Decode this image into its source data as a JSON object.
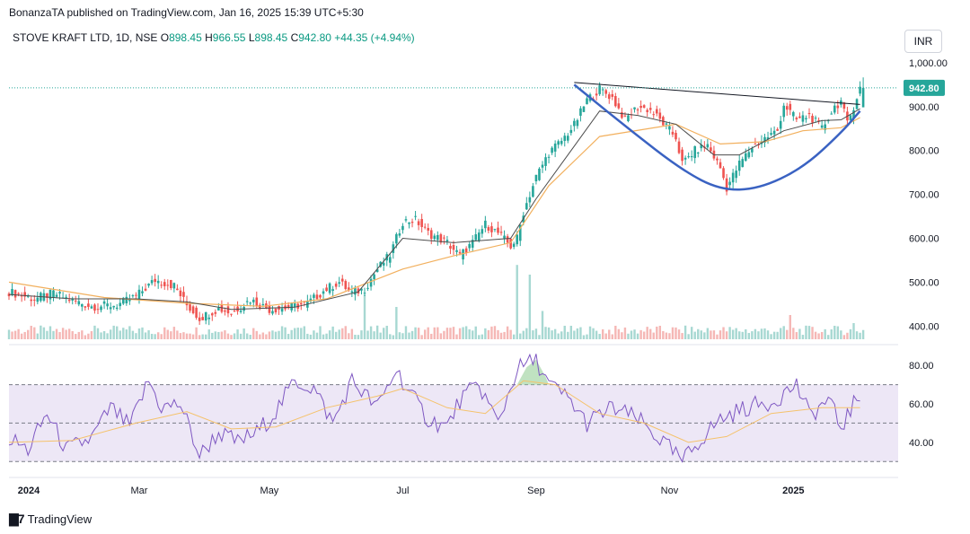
{
  "header": {
    "publisher": "BonanzaTA published on TradingView.com, Jan 16, 2025 15:39 UTC+5:30"
  },
  "legend": {
    "symbol": "STOVE KRAFT LTD, 1D, NSE",
    "open_label": "O",
    "open": "898.45",
    "high_label": "H",
    "high": "966.55",
    "low_label": "L",
    "low": "898.45",
    "close_label": "C",
    "close": "942.80",
    "change": "+44.35 (+4.94%)"
  },
  "currency_button": "INR",
  "price_tag": "942.80",
  "footer": {
    "brand": "TradingView",
    "logo_icon": "tradingview-logo-icon"
  },
  "colors": {
    "up": "#26a69a",
    "down": "#ef5350",
    "ema_fast": "#4c4c4c",
    "ema_slow": "#f2b05e",
    "cup": "#3a62c2",
    "rsi": "#7e57c2",
    "rsi_ma": "#f5c26b",
    "rsi_band": "#ede7f6"
  },
  "chart_data": {
    "type": "candlestick",
    "symbol": "STOVE KRAFT LTD",
    "interval": "1D",
    "exchange": "NSE",
    "price_axis": {
      "range": [
        370,
        1010
      ],
      "ticks": [
        "1,000.00",
        "900.00",
        "800.00",
        "700.00",
        "600.00",
        "500.00",
        "400.00"
      ],
      "tick_values": [
        1000,
        900,
        800,
        700,
        600,
        500,
        400
      ]
    },
    "rsi_axis": {
      "range": [
        25,
        88
      ],
      "ticks": [
        "80.00",
        "60.00",
        "40.00"
      ],
      "tick_values": [
        80,
        60,
        40
      ],
      "bands": [
        70,
        50,
        30
      ]
    },
    "x_ticks": [
      "2024",
      "Mar",
      "May",
      "Jul",
      "Sep",
      "Nov",
      "2025"
    ],
    "x_tick_index": [
      0,
      41,
      82,
      124,
      166,
      208,
      247
    ],
    "last_close": 942.8,
    "price_path": [
      [
        0,
        478
      ],
      [
        8,
        462
      ],
      [
        14,
        475
      ],
      [
        20,
        458
      ],
      [
        26,
        445
      ],
      [
        34,
        448
      ],
      [
        40,
        468
      ],
      [
        46,
        505
      ],
      [
        52,
        492
      ],
      [
        56,
        448
      ],
      [
        60,
        418
      ],
      [
        66,
        440
      ],
      [
        70,
        430
      ],
      [
        76,
        460
      ],
      [
        82,
        438
      ],
      [
        88,
        442
      ],
      [
        94,
        452
      ],
      [
        100,
        485
      ],
      [
        104,
        500
      ],
      [
        108,
        475
      ],
      [
        112,
        485
      ],
      [
        116,
        530
      ],
      [
        120,
        562
      ],
      [
        124,
        638
      ],
      [
        128,
        642
      ],
      [
        132,
        612
      ],
      [
        138,
        590
      ],
      [
        142,
        560
      ],
      [
        146,
        590
      ],
      [
        150,
        632
      ],
      [
        154,
        612
      ],
      [
        158,
        582
      ],
      [
        160,
        600
      ],
      [
        162,
        660
      ],
      [
        166,
        740
      ],
      [
        170,
        795
      ],
      [
        174,
        822
      ],
      [
        178,
        858
      ],
      [
        182,
        915
      ],
      [
        186,
        940
      ],
      [
        190,
        920
      ],
      [
        194,
        870
      ],
      [
        198,
        900
      ],
      [
        202,
        892
      ],
      [
        206,
        862
      ],
      [
        210,
        830
      ],
      [
        212,
        770
      ],
      [
        216,
        800
      ],
      [
        220,
        812
      ],
      [
        224,
        760
      ],
      [
        226,
        715
      ],
      [
        230,
        770
      ],
      [
        234,
        808
      ],
      [
        238,
        828
      ],
      [
        242,
        845
      ],
      [
        244,
        905
      ],
      [
        248,
        870
      ],
      [
        252,
        880
      ],
      [
        256,
        850
      ],
      [
        260,
        900
      ],
      [
        262,
        912
      ],
      [
        264,
        860
      ],
      [
        268,
        942.8
      ]
    ],
    "ema_fast_path": [
      [
        0,
        472
      ],
      [
        20,
        462
      ],
      [
        40,
        462
      ],
      [
        56,
        455
      ],
      [
        70,
        438
      ],
      [
        90,
        443
      ],
      [
        110,
        478
      ],
      [
        124,
        600
      ],
      [
        140,
        590
      ],
      [
        158,
        600
      ],
      [
        166,
        690
      ],
      [
        178,
        810
      ],
      [
        186,
        890
      ],
      [
        198,
        880
      ],
      [
        210,
        860
      ],
      [
        222,
        790
      ],
      [
        230,
        790
      ],
      [
        244,
        845
      ],
      [
        256,
        868
      ],
      [
        262,
        870
      ],
      [
        268,
        895
      ]
    ],
    "ema_slow_path": [
      [
        0,
        500
      ],
      [
        30,
        465
      ],
      [
        56,
        452
      ],
      [
        80,
        445
      ],
      [
        100,
        462
      ],
      [
        124,
        530
      ],
      [
        140,
        560
      ],
      [
        158,
        590
      ],
      [
        170,
        720
      ],
      [
        186,
        832
      ],
      [
        210,
        860
      ],
      [
        224,
        815
      ],
      [
        238,
        820
      ],
      [
        250,
        845
      ],
      [
        262,
        852
      ],
      [
        268,
        875
      ]
    ],
    "resistance_line": [
      [
        178,
        955
      ],
      [
        268,
        905
      ]
    ],
    "cup_path": [
      [
        178,
        950
      ],
      [
        195,
        850
      ],
      [
        212,
        755
      ],
      [
        224,
        710
      ],
      [
        236,
        712
      ],
      [
        250,
        760
      ],
      [
        262,
        840
      ],
      [
        268,
        890
      ]
    ],
    "volume_spikes": [
      [
        112,
        0.55
      ],
      [
        122,
        0.4
      ],
      [
        160,
        0.92
      ],
      [
        164,
        0.8
      ],
      [
        168,
        0.35
      ],
      [
        246,
        0.3
      ],
      [
        266,
        0.2
      ]
    ],
    "rsi_path": [
      [
        0,
        42
      ],
      [
        6,
        36
      ],
      [
        12,
        55
      ],
      [
        18,
        36
      ],
      [
        26,
        42
      ],
      [
        32,
        58
      ],
      [
        38,
        48
      ],
      [
        44,
        72
      ],
      [
        48,
        58
      ],
      [
        54,
        60
      ],
      [
        60,
        33
      ],
      [
        66,
        45
      ],
      [
        72,
        40
      ],
      [
        78,
        45
      ],
      [
        84,
        56
      ],
      [
        90,
        72
      ],
      [
        96,
        68
      ],
      [
        102,
        50
      ],
      [
        108,
        72
      ],
      [
        116,
        58
      ],
      [
        122,
        78
      ],
      [
        126,
        66
      ],
      [
        132,
        52
      ],
      [
        138,
        48
      ],
      [
        142,
        62
      ],
      [
        148,
        70
      ],
      [
        154,
        50
      ],
      [
        160,
        78
      ],
      [
        166,
        83
      ],
      [
        170,
        70
      ],
      [
        176,
        63
      ],
      [
        182,
        50
      ],
      [
        190,
        58
      ],
      [
        198,
        52
      ],
      [
        206,
        40
      ],
      [
        212,
        30
      ],
      [
        218,
        42
      ],
      [
        224,
        52
      ],
      [
        232,
        58
      ],
      [
        240,
        61
      ],
      [
        248,
        70
      ],
      [
        252,
        54
      ],
      [
        258,
        62
      ],
      [
        262,
        48
      ],
      [
        268,
        65
      ]
    ],
    "rsi_ma_path": [
      [
        0,
        40
      ],
      [
        20,
        41
      ],
      [
        40,
        50
      ],
      [
        56,
        56
      ],
      [
        70,
        47
      ],
      [
        84,
        48
      ],
      [
        100,
        58
      ],
      [
        116,
        64
      ],
      [
        124,
        68
      ],
      [
        138,
        58
      ],
      [
        150,
        55
      ],
      [
        162,
        72
      ],
      [
        172,
        70
      ],
      [
        186,
        55
      ],
      [
        200,
        50
      ],
      [
        214,
        40
      ],
      [
        226,
        43
      ],
      [
        240,
        55
      ],
      [
        256,
        58
      ],
      [
        268,
        58
      ]
    ]
  }
}
